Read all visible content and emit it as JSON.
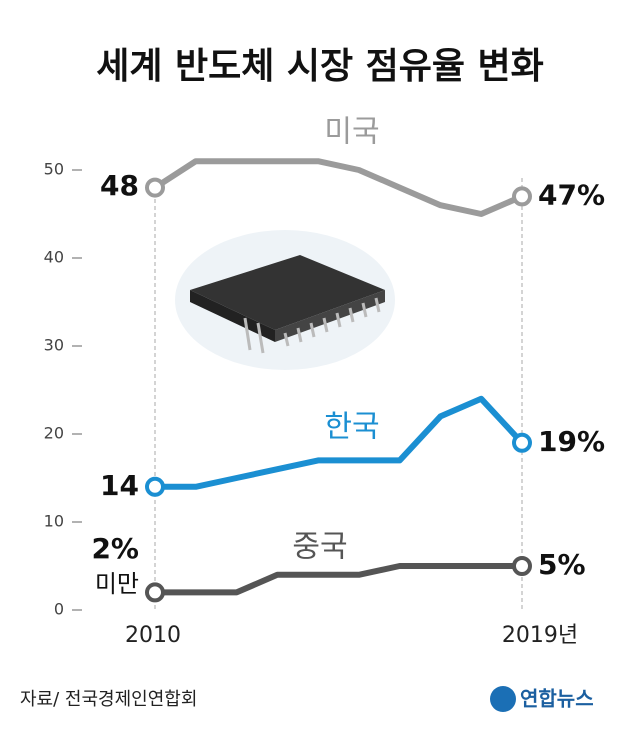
{
  "chart_data": {
    "type": "line",
    "title": "세계 반도체 시장 점유율 변화",
    "categories": [
      "2010",
      null,
      null,
      null,
      null,
      null,
      null,
      null,
      null,
      "2019년"
    ],
    "ylim": [
      0,
      50
    ],
    "yticks": [
      0,
      10,
      20,
      30,
      40,
      50
    ],
    "series": [
      {
        "name": "미국",
        "color": "#9b9b9b",
        "values": [
          48,
          51,
          51,
          51,
          51,
          50,
          48,
          46,
          45,
          47
        ],
        "value_labels": [
          "48",
          null,
          null,
          null,
          null,
          null,
          null,
          null,
          null,
          "47%"
        ]
      },
      {
        "name": "한국",
        "color": "#1b8fd2",
        "values": [
          14,
          14,
          15,
          16,
          17,
          17,
          17,
          22,
          24,
          19
        ],
        "value_labels": [
          "14",
          null,
          null,
          null,
          null,
          null,
          null,
          null,
          null,
          "19%"
        ]
      },
      {
        "name": "중국",
        "color": "#555555",
        "values": [
          2,
          2,
          2,
          4,
          4,
          4,
          5,
          5,
          5,
          5
        ],
        "value_labels": [
          "2%",
          null,
          null,
          null,
          null,
          null,
          null,
          null,
          null,
          "5%"
        ]
      }
    ],
    "annotations": [
      "미만"
    ],
    "source": "자료/ 전국경제인연합회",
    "logo": "연합뉴스"
  }
}
